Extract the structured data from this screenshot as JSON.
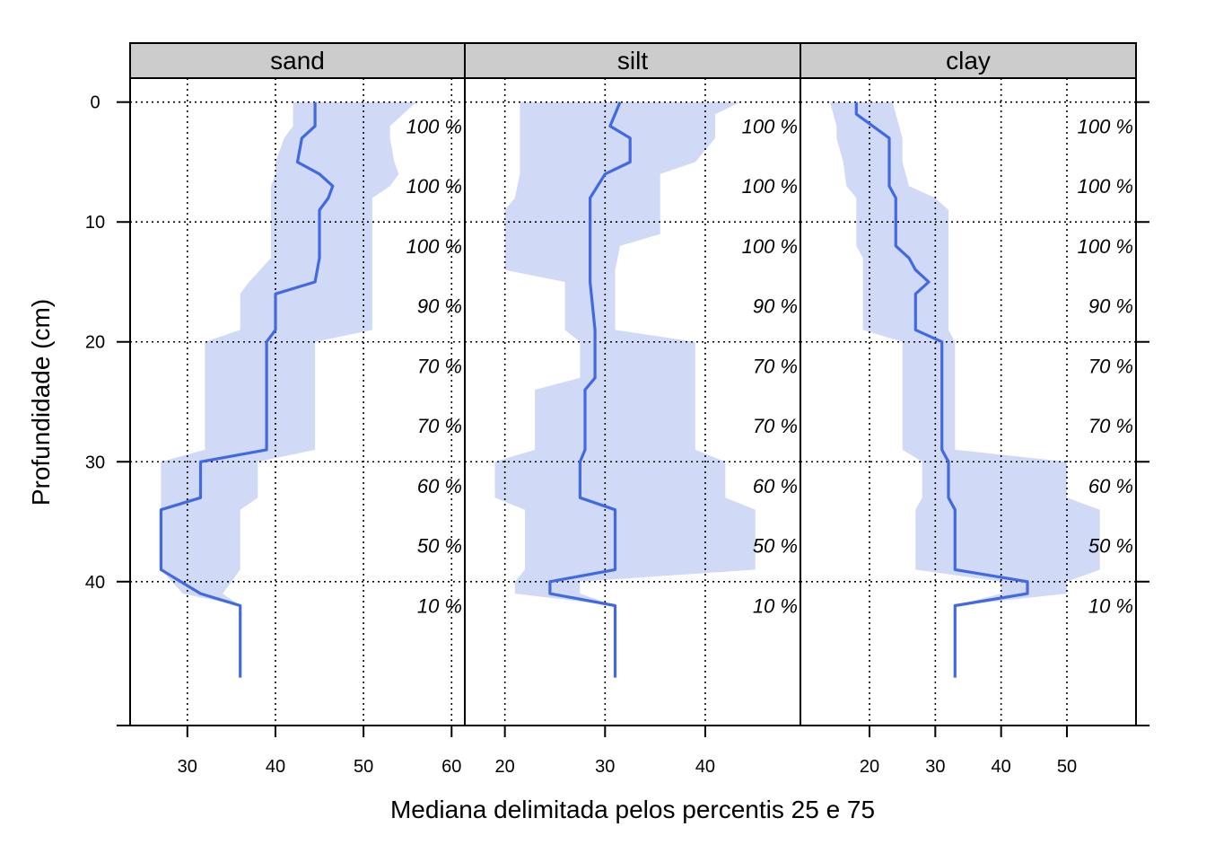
{
  "chart_data": {
    "type": "line",
    "xlabel": "Mediana delimitada pelos percentis 25 e 75",
    "ylabel": "Profundidade (cm)",
    "y_ticks": [
      0,
      10,
      20,
      30,
      40
    ],
    "y_range": [
      52,
      -2
    ],
    "grid": true,
    "band_color": "#d0d9f5",
    "line_color": "#4169e1",
    "strip_color": "#cccccc",
    "depth_labels": {
      "depths": [
        2,
        7,
        12,
        17,
        22,
        27,
        32,
        37,
        42
      ],
      "text": [
        "100 %",
        "100 %",
        "100 %",
        "90 %",
        "70 %",
        "70 %",
        "60 %",
        "50 %",
        "10 %"
      ]
    },
    "panels": [
      {
        "name": "sand",
        "xlim": [
          23.5,
          61.5
        ],
        "x_ticks": [
          30,
          40,
          50,
          60
        ],
        "series": [
          {
            "y": 0,
            "median": 44.5,
            "p25": 42,
            "p75": 56
          },
          {
            "y": 2,
            "median": 44.5,
            "p25": 42,
            "p75": 53
          },
          {
            "y": 3,
            "median": 43,
            "p25": 41,
            "p75": 53
          },
          {
            "y": 5,
            "median": 42.5,
            "p25": 40,
            "p75": 53.5
          },
          {
            "y": 6,
            "median": 45,
            "p25": 40,
            "p75": 54
          },
          {
            "y": 7,
            "median": 46.5,
            "p25": 39.5,
            "p75": 53
          },
          {
            "y": 8,
            "median": 46,
            "p25": 39.5,
            "p75": 51
          },
          {
            "y": 9,
            "median": 45,
            "p25": 39.5,
            "p75": 51
          },
          {
            "y": 13,
            "median": 45,
            "p25": 39.5,
            "p75": 51
          },
          {
            "y": 15,
            "median": 44.5,
            "p25": 37,
            "p75": 51
          },
          {
            "y": 16,
            "median": 40,
            "p25": 36,
            "p75": 51
          },
          {
            "y": 19,
            "median": 40,
            "p25": 36,
            "p75": 51
          },
          {
            "y": 20,
            "median": 39,
            "p25": 32,
            "p75": 44.5
          },
          {
            "y": 29,
            "median": 39,
            "p25": 32,
            "p75": 44.5
          },
          {
            "y": 30,
            "median": 31.5,
            "p25": 27,
            "p75": 38
          },
          {
            "y": 33,
            "median": 31.5,
            "p25": 27,
            "p75": 38
          },
          {
            "y": 34,
            "median": 27,
            "p25": 27,
            "p75": 36
          },
          {
            "y": 39,
            "median": 27,
            "p25": 27,
            "p75": 36
          },
          {
            "y": 41,
            "median": 31.5,
            "p25": 29.5,
            "p75": 34
          },
          {
            "y": 42,
            "median": 36,
            "p25": 36,
            "p75": 36
          },
          {
            "y": 48,
            "median": 36,
            "p25": 36,
            "p75": 36
          }
        ]
      },
      {
        "name": "silt",
        "xlim": [
          16,
          49.5
        ],
        "x_ticks": [
          20,
          30,
          40
        ],
        "series": [
          {
            "y": 0,
            "median": 31.5,
            "p25": 21.5,
            "p75": 43.5
          },
          {
            "y": 1,
            "median": 31,
            "p25": 21.5,
            "p75": 41
          },
          {
            "y": 2,
            "median": 30.5,
            "p25": 21.5,
            "p75": 41
          },
          {
            "y": 3,
            "median": 32.5,
            "p25": 21.5,
            "p75": 41
          },
          {
            "y": 5,
            "median": 32.5,
            "p25": 21.5,
            "p75": 39
          },
          {
            "y": 6,
            "median": 30,
            "p25": 21.5,
            "p75": 35.5
          },
          {
            "y": 8,
            "median": 28.5,
            "p25": 21,
            "p75": 35.5
          },
          {
            "y": 9,
            "median": 28.5,
            "p25": 20,
            "p75": 35.5
          },
          {
            "y": 11,
            "median": 28.5,
            "p25": 20,
            "p75": 35.5
          },
          {
            "y": 12,
            "median": 28.5,
            "p25": 20,
            "p75": 31.5
          },
          {
            "y": 14,
            "median": 28.5,
            "p25": 20,
            "p75": 31
          },
          {
            "y": 15,
            "median": 28.5,
            "p25": 26,
            "p75": 31
          },
          {
            "y": 19,
            "median": 29,
            "p25": 26,
            "p75": 31
          },
          {
            "y": 20,
            "median": 29,
            "p25": 27.5,
            "p75": 39
          },
          {
            "y": 23,
            "median": 29,
            "p25": 27.5,
            "p75": 39
          },
          {
            "y": 24,
            "median": 28,
            "p25": 23,
            "p75": 39
          },
          {
            "y": 29,
            "median": 28,
            "p25": 23,
            "p75": 39
          },
          {
            "y": 30,
            "median": 27.5,
            "p25": 19,
            "p75": 42
          },
          {
            "y": 33,
            "median": 27.5,
            "p25": 19,
            "p75": 42
          },
          {
            "y": 34,
            "median": 31,
            "p25": 22,
            "p75": 45
          },
          {
            "y": 39,
            "median": 31,
            "p25": 22,
            "p75": 45
          },
          {
            "y": 40,
            "median": 24.5,
            "p25": 21,
            "p75": 27.5
          },
          {
            "y": 41,
            "median": 24.5,
            "p25": 21,
            "p75": 27.5
          },
          {
            "y": 42,
            "median": 31,
            "p25": 31,
            "p75": 31
          },
          {
            "y": 48,
            "median": 31,
            "p25": 31,
            "p75": 31
          }
        ]
      },
      {
        "name": "clay",
        "xlim": [
          9.5,
          60.5
        ],
        "x_ticks": [
          20,
          30,
          40,
          50
        ],
        "series": [
          {
            "y": 0,
            "median": 18,
            "p25": 14,
            "p75": 23.5
          },
          {
            "y": 1,
            "median": 18,
            "p25": 14.5,
            "p75": 24
          },
          {
            "y": 2,
            "median": 20.5,
            "p25": 15,
            "p75": 24.5
          },
          {
            "y": 3,
            "median": 23,
            "p25": 15,
            "p75": 25
          },
          {
            "y": 5,
            "median": 23,
            "p25": 16,
            "p75": 25
          },
          {
            "y": 7,
            "median": 23,
            "p25": 16.5,
            "p75": 26
          },
          {
            "y": 8,
            "median": 24,
            "p25": 18,
            "p75": 30
          },
          {
            "y": 9,
            "median": 24,
            "p25": 18,
            "p75": 32
          },
          {
            "y": 12,
            "median": 24,
            "p25": 18,
            "p75": 32
          },
          {
            "y": 13,
            "median": 26,
            "p25": 19,
            "p75": 32
          },
          {
            "y": 14,
            "median": 27,
            "p25": 19,
            "p75": 32
          },
          {
            "y": 15,
            "median": 29,
            "p25": 19,
            "p75": 32
          },
          {
            "y": 16,
            "median": 27,
            "p25": 19,
            "p75": 32
          },
          {
            "y": 19,
            "median": 27,
            "p25": 19,
            "p75": 32
          },
          {
            "y": 20,
            "median": 31,
            "p25": 25,
            "p75": 33
          },
          {
            "y": 29,
            "median": 31,
            "p25": 25,
            "p75": 33
          },
          {
            "y": 30,
            "median": 32,
            "p25": 28,
            "p75": 50
          },
          {
            "y": 33,
            "median": 32,
            "p25": 28,
            "p75": 50
          },
          {
            "y": 34,
            "median": 33,
            "p25": 27,
            "p75": 55
          },
          {
            "y": 39,
            "median": 33,
            "p25": 27,
            "p75": 55
          },
          {
            "y": 40,
            "median": 44,
            "p25": 40,
            "p75": 50
          },
          {
            "y": 41,
            "median": 44,
            "p25": 40,
            "p75": 50
          },
          {
            "y": 42,
            "median": 33,
            "p25": 33,
            "p75": 33
          },
          {
            "y": 48,
            "median": 33,
            "p25": 33,
            "p75": 33
          }
        ]
      }
    ]
  }
}
